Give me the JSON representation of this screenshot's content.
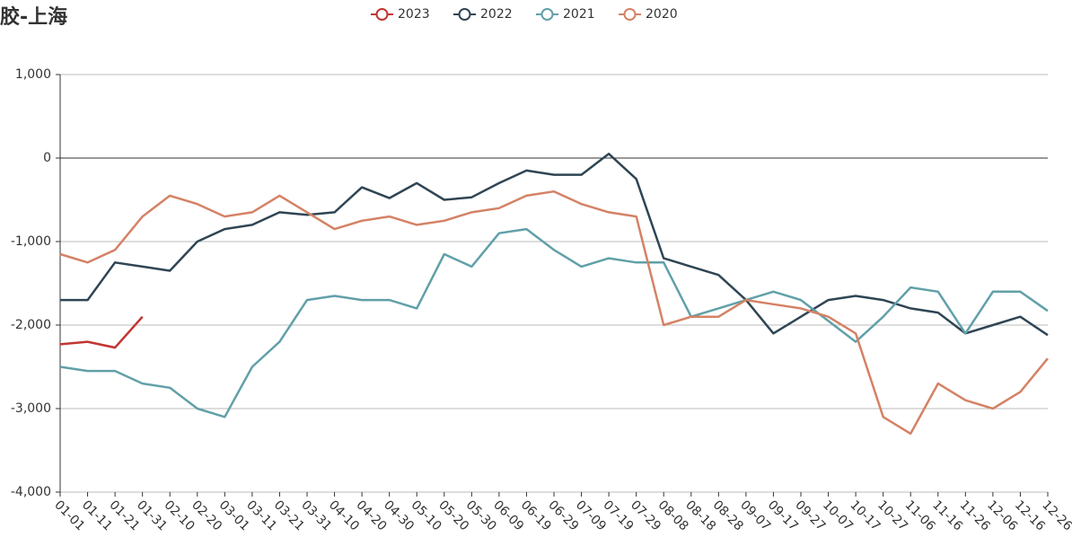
{
  "chart_data": {
    "type": "line",
    "title": "橡胶-上海",
    "categories": [
      "01-01",
      "01-11",
      "01-21",
      "01-31",
      "02-10",
      "02-20",
      "03-01",
      "03-11",
      "03-21",
      "03-31",
      "04-10",
      "04-20",
      "04-30",
      "05-10",
      "05-20",
      "05-30",
      "06-09",
      "06-19",
      "06-29",
      "07-09",
      "07-19",
      "07-29",
      "08-08",
      "08-18",
      "08-28",
      "09-07",
      "09-17",
      "09-27",
      "10-07",
      "10-17",
      "10-27",
      "11-06",
      "11-16",
      "11-26",
      "12-06",
      "12-16",
      "12-26"
    ],
    "series": [
      {
        "name": "2023",
        "color": "#c23531",
        "values": [
          -2230,
          -2200,
          -2270,
          -1900,
          null,
          null,
          null,
          null,
          null,
          null,
          null,
          null,
          null,
          null,
          null,
          null,
          null,
          null,
          null,
          null,
          null,
          null,
          null,
          null,
          null,
          null,
          null,
          null,
          null,
          null,
          null,
          null,
          null,
          null,
          null,
          null,
          null
        ]
      },
      {
        "name": "2022",
        "color": "#2f4554",
        "values": [
          -1700,
          -1700,
          -1250,
          -1300,
          -1350,
          -1000,
          -850,
          -800,
          -650,
          -680,
          -650,
          -350,
          -480,
          -300,
          -500,
          -470,
          -300,
          -150,
          -200,
          -200,
          50,
          -250,
          -1200,
          -1300,
          -1400,
          -1700,
          -2100,
          -1900,
          -1700,
          -1650,
          -1700,
          -1800,
          -1850,
          -2100,
          -2000,
          -1900,
          -2120
        ]
      },
      {
        "name": "2021",
        "color": "#61a0a8",
        "values": [
          -2500,
          -2550,
          -2550,
          -2700,
          -2750,
          -3000,
          -3100,
          -2500,
          -2200,
          -1700,
          -1650,
          -1700,
          -1700,
          -1800,
          -1150,
          -1300,
          -900,
          -850,
          -1100,
          -1300,
          -1200,
          -1250,
          -1250,
          -1900,
          -1800,
          -1700,
          -1600,
          -1700,
          -1950,
          -2200,
          -1900,
          -1550,
          -1600,
          -2100,
          -1600,
          -1600,
          -1830
        ]
      },
      {
        "name": "2020",
        "color": "#d48265",
        "values": [
          -1150,
          -1250,
          -1100,
          -700,
          -450,
          -550,
          -700,
          -650,
          -450,
          -650,
          -850,
          -750,
          -700,
          -800,
          -750,
          -650,
          -600,
          -450,
          -400,
          -550,
          -650,
          -700,
          -2000,
          -1900,
          -1900,
          -1700,
          -1750,
          -1800,
          -1900,
          -2100,
          -3100,
          -3300,
          -2700,
          -2900,
          -3000,
          -2800,
          -2400
        ]
      }
    ],
    "ylim": [
      -4000,
      1000
    ],
    "yticks": [
      {
        "value": -4000,
        "label": "-4,000"
      },
      {
        "value": -3000,
        "label": "-3,000"
      },
      {
        "value": -2000,
        "label": "-2,000"
      },
      {
        "value": -1000,
        "label": "-1,000"
      },
      0,
      {
        "value": 1000,
        "label": "1,000"
      }
    ],
    "grid": true
  }
}
